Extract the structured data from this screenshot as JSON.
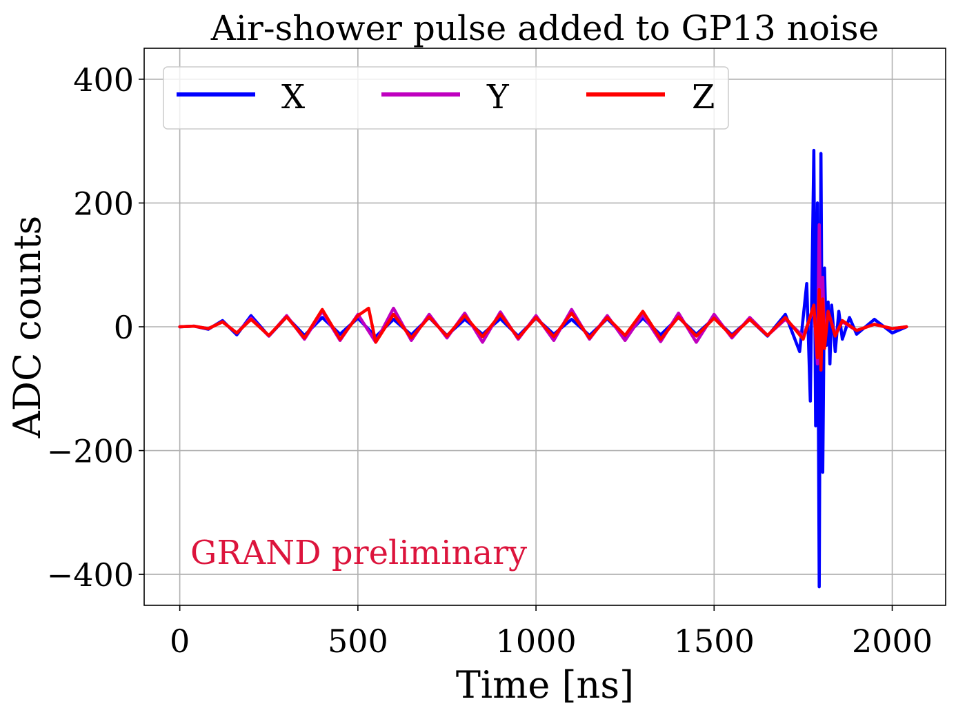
{
  "chart_data": {
    "type": "line",
    "title": "Air-shower pulse added to GP13 noise",
    "xlabel": "Time [ns]",
    "ylabel": "ADC counts",
    "xlim": [
      -100,
      2150
    ],
    "ylim": [
      -450,
      450
    ],
    "x_ticks": [
      0,
      500,
      1000,
      1500,
      2000
    ],
    "x_tick_labels": [
      "0",
      "500",
      "1000",
      "1500",
      "2000"
    ],
    "y_ticks": [
      400,
      200,
      0,
      -200,
      -400
    ],
    "y_tick_labels": [
      "400",
      "200",
      "0",
      "−200",
      "−400"
    ],
    "grid": true,
    "legend_position": "top-left",
    "annotation": "GRAND preliminary",
    "annotation_color": "#dc143c",
    "series": [
      {
        "name": "X",
        "color": "#0000ff",
        "x": [
          0,
          40,
          80,
          120,
          160,
          200,
          250,
          300,
          350,
          400,
          450,
          500,
          550,
          600,
          650,
          700,
          750,
          800,
          850,
          900,
          950,
          1000,
          1050,
          1100,
          1150,
          1200,
          1250,
          1300,
          1350,
          1400,
          1450,
          1500,
          1550,
          1600,
          1650,
          1700,
          1740,
          1760,
          1770,
          1780,
          1785,
          1790,
          1795,
          1800,
          1805,
          1810,
          1815,
          1820,
          1825,
          1830,
          1840,
          1850,
          1860,
          1880,
          1900,
          1950,
          2000,
          2040
        ],
        "y": [
          0,
          1,
          -4,
          10,
          -13,
          18,
          -15,
          16,
          -14,
          15,
          -12,
          14,
          -16,
          12,
          -13,
          15,
          -14,
          12,
          -12,
          13,
          -15,
          14,
          -12,
          12,
          -14,
          13,
          -16,
          14,
          -13,
          15,
          -12,
          14,
          -13,
          12,
          -15,
          20,
          -40,
          70,
          -120,
          285,
          -160,
          200,
          -420,
          280,
          -235,
          95,
          -30,
          40,
          -60,
          35,
          -40,
          25,
          -20,
          15,
          -12,
          12,
          -10,
          0
        ]
      },
      {
        "name": "Y",
        "color": "#bf00bf",
        "x": [
          0,
          40,
          80,
          120,
          160,
          200,
          250,
          300,
          350,
          400,
          450,
          500,
          550,
          600,
          650,
          700,
          750,
          800,
          850,
          900,
          950,
          1000,
          1050,
          1100,
          1150,
          1200,
          1250,
          1300,
          1350,
          1400,
          1450,
          1500,
          1550,
          1600,
          1650,
          1700,
          1750,
          1780,
          1790,
          1795,
          1800,
          1805,
          1810,
          1820,
          1840,
          1860,
          1900,
          1950,
          2000,
          2040
        ],
        "y": [
          0,
          1,
          -3,
          8,
          -10,
          14,
          -15,
          18,
          -20,
          25,
          -22,
          20,
          -25,
          30,
          -22,
          20,
          -18,
          22,
          -25,
          24,
          -20,
          18,
          -22,
          28,
          -20,
          18,
          -22,
          20,
          -24,
          22,
          -25,
          20,
          -18,
          15,
          -14,
          12,
          -15,
          30,
          -60,
          165,
          -40,
          80,
          -20,
          25,
          -12,
          8,
          -6,
          4,
          -3,
          0
        ]
      },
      {
        "name": "Z",
        "color": "#ff0000",
        "x": [
          0,
          40,
          80,
          120,
          160,
          200,
          250,
          300,
          350,
          400,
          450,
          500,
          530,
          550,
          600,
          650,
          700,
          750,
          800,
          850,
          900,
          950,
          1000,
          1050,
          1100,
          1150,
          1200,
          1250,
          1300,
          1350,
          1400,
          1450,
          1500,
          1550,
          1600,
          1650,
          1700,
          1750,
          1780,
          1790,
          1795,
          1800,
          1805,
          1810,
          1820,
          1840,
          1860,
          1900,
          1950,
          2000,
          2040
        ],
        "y": [
          0,
          1,
          -3,
          8,
          -10,
          12,
          -14,
          16,
          -18,
          28,
          -20,
          18,
          30,
          -25,
          20,
          -18,
          16,
          -15,
          18,
          -16,
          20,
          -18,
          15,
          -16,
          22,
          -18,
          15,
          -14,
          25,
          -20,
          16,
          -15,
          14,
          -15,
          12,
          -14,
          15,
          -20,
          35,
          -50,
          60,
          -70,
          45,
          -35,
          25,
          -15,
          10,
          -6,
          4,
          -3,
          0
        ]
      }
    ]
  }
}
